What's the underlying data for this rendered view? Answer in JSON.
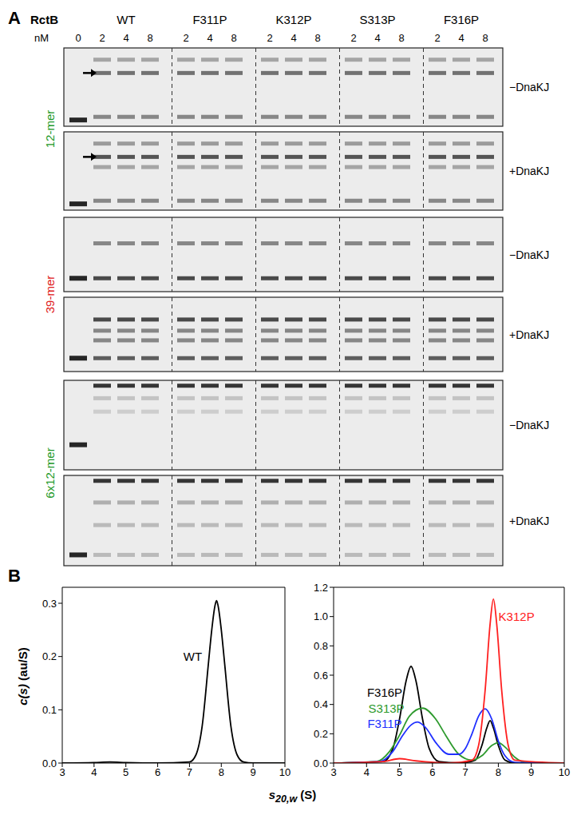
{
  "panel_a": {
    "label": "A",
    "protein_label": "RctB",
    "conc_unit": "nM",
    "control_conc": 0,
    "groups": [
      {
        "name": "WT",
        "concs": [
          2,
          4,
          8
        ]
      },
      {
        "name": "F311P",
        "concs": [
          2,
          4,
          8
        ]
      },
      {
        "name": "K312P",
        "concs": [
          2,
          4,
          8
        ]
      },
      {
        "name": "S313P",
        "concs": [
          2,
          4,
          8
        ]
      },
      {
        "name": "F316P",
        "concs": [
          2,
          4,
          8
        ]
      }
    ],
    "gels": [
      {
        "probe": "12-mer",
        "color": "#1f9a2a",
        "rows": [
          "−DnaKJ",
          "+DnaKJ"
        ]
      },
      {
        "probe": "39-mer",
        "color": "#e02020",
        "rows": [
          "−DnaKJ",
          "+DnaKJ"
        ]
      },
      {
        "probe": "6x12-mer",
        "color": "#1f9a2a",
        "rows": [
          "−DnaKJ",
          "+DnaKJ"
        ]
      }
    ]
  },
  "panel_b_label": "B",
  "y_label": {
    "symbol": "c(s)",
    "unit": "(au/S)"
  },
  "x_label": {
    "symbol": "s",
    "subscript": "20,w",
    "unit": "(S)"
  },
  "chart_data": [
    {
      "type": "line",
      "xlim": [
        3,
        10
      ],
      "xticks": [
        3,
        4,
        5,
        6,
        7,
        8,
        9,
        10
      ],
      "ylim": [
        0,
        0.33
      ],
      "yticks": [
        {
          "value": 0,
          "label": "0.0"
        },
        0.1,
        0.2,
        0.3
      ],
      "series": [
        {
          "name": "WT",
          "color": "#000000",
          "x": [
            3,
            4,
            4.5,
            5,
            6,
            7,
            7.2,
            7.4,
            7.6,
            7.7,
            7.8,
            7.85,
            7.9,
            8.0,
            8.1,
            8.3,
            8.5,
            8.7,
            9,
            10
          ],
          "values": [
            0,
            0.001,
            0.002,
            0.001,
            0,
            0.002,
            0.015,
            0.07,
            0.19,
            0.25,
            0.295,
            0.305,
            0.295,
            0.25,
            0.19,
            0.07,
            0.015,
            0.002,
            0,
            0
          ]
        }
      ]
    },
    {
      "type": "line",
      "xlim": [
        3,
        10
      ],
      "xticks": [
        3,
        4,
        5,
        6,
        7,
        8,
        9,
        10
      ],
      "ylim": [
        0,
        1.2
      ],
      "yticks": [
        {
          "value": 0,
          "label": "0.0"
        },
        0.2,
        0.4,
        0.6,
        0.8,
        {
          "value": 1,
          "label": "1.0"
        },
        1.2
      ],
      "series": [
        {
          "name": "F316P",
          "color": "#000000",
          "x": [
            3,
            4.5,
            4.8,
            5.0,
            5.2,
            5.35,
            5.5,
            5.7,
            5.9,
            6.2,
            6.8,
            7.3,
            7.5,
            7.65,
            7.75,
            7.85,
            8.0,
            8.2,
            8.5,
            10
          ],
          "values": [
            0,
            0.01,
            0.1,
            0.3,
            0.56,
            0.66,
            0.56,
            0.3,
            0.1,
            0.01,
            0,
            0.02,
            0.12,
            0.24,
            0.29,
            0.24,
            0.12,
            0.02,
            0,
            0
          ]
        },
        {
          "name": "S313P",
          "color": "#2e9a2e",
          "x": [
            3,
            4.3,
            4.7,
            5.0,
            5.3,
            5.7,
            6.1,
            6.4,
            6.8,
            7.2,
            7.5,
            7.8,
            8.0,
            8.2,
            8.5,
            8.8,
            10
          ],
          "values": [
            0,
            0.01,
            0.08,
            0.19,
            0.32,
            0.375,
            0.3,
            0.19,
            0.06,
            0.02,
            0.05,
            0.12,
            0.14,
            0.11,
            0.04,
            0.005,
            0
          ]
        },
        {
          "name": "F311P",
          "color": "#2030ff",
          "x": [
            3,
            4.4,
            4.8,
            5.1,
            5.35,
            5.55,
            5.8,
            6.1,
            6.5,
            6.8,
            7.0,
            7.2,
            7.4,
            7.6,
            7.8,
            8.0,
            8.2,
            8.5,
            10
          ],
          "values": [
            0,
            0.01,
            0.08,
            0.19,
            0.26,
            0.28,
            0.24,
            0.14,
            0.06,
            0.06,
            0.1,
            0.2,
            0.32,
            0.37,
            0.3,
            0.15,
            0.05,
            0.005,
            0
          ]
        },
        {
          "name": "K312P",
          "color": "#ff2020",
          "x": [
            3,
            4.5,
            5.0,
            5.5,
            6.5,
            7.2,
            7.4,
            7.6,
            7.75,
            7.85,
            7.95,
            8.1,
            8.3,
            8.5,
            10
          ],
          "values": [
            0,
            0.01,
            0.03,
            0.015,
            0,
            0.02,
            0.12,
            0.5,
            0.95,
            1.12,
            0.95,
            0.5,
            0.12,
            0.02,
            0
          ]
        }
      ]
    }
  ]
}
